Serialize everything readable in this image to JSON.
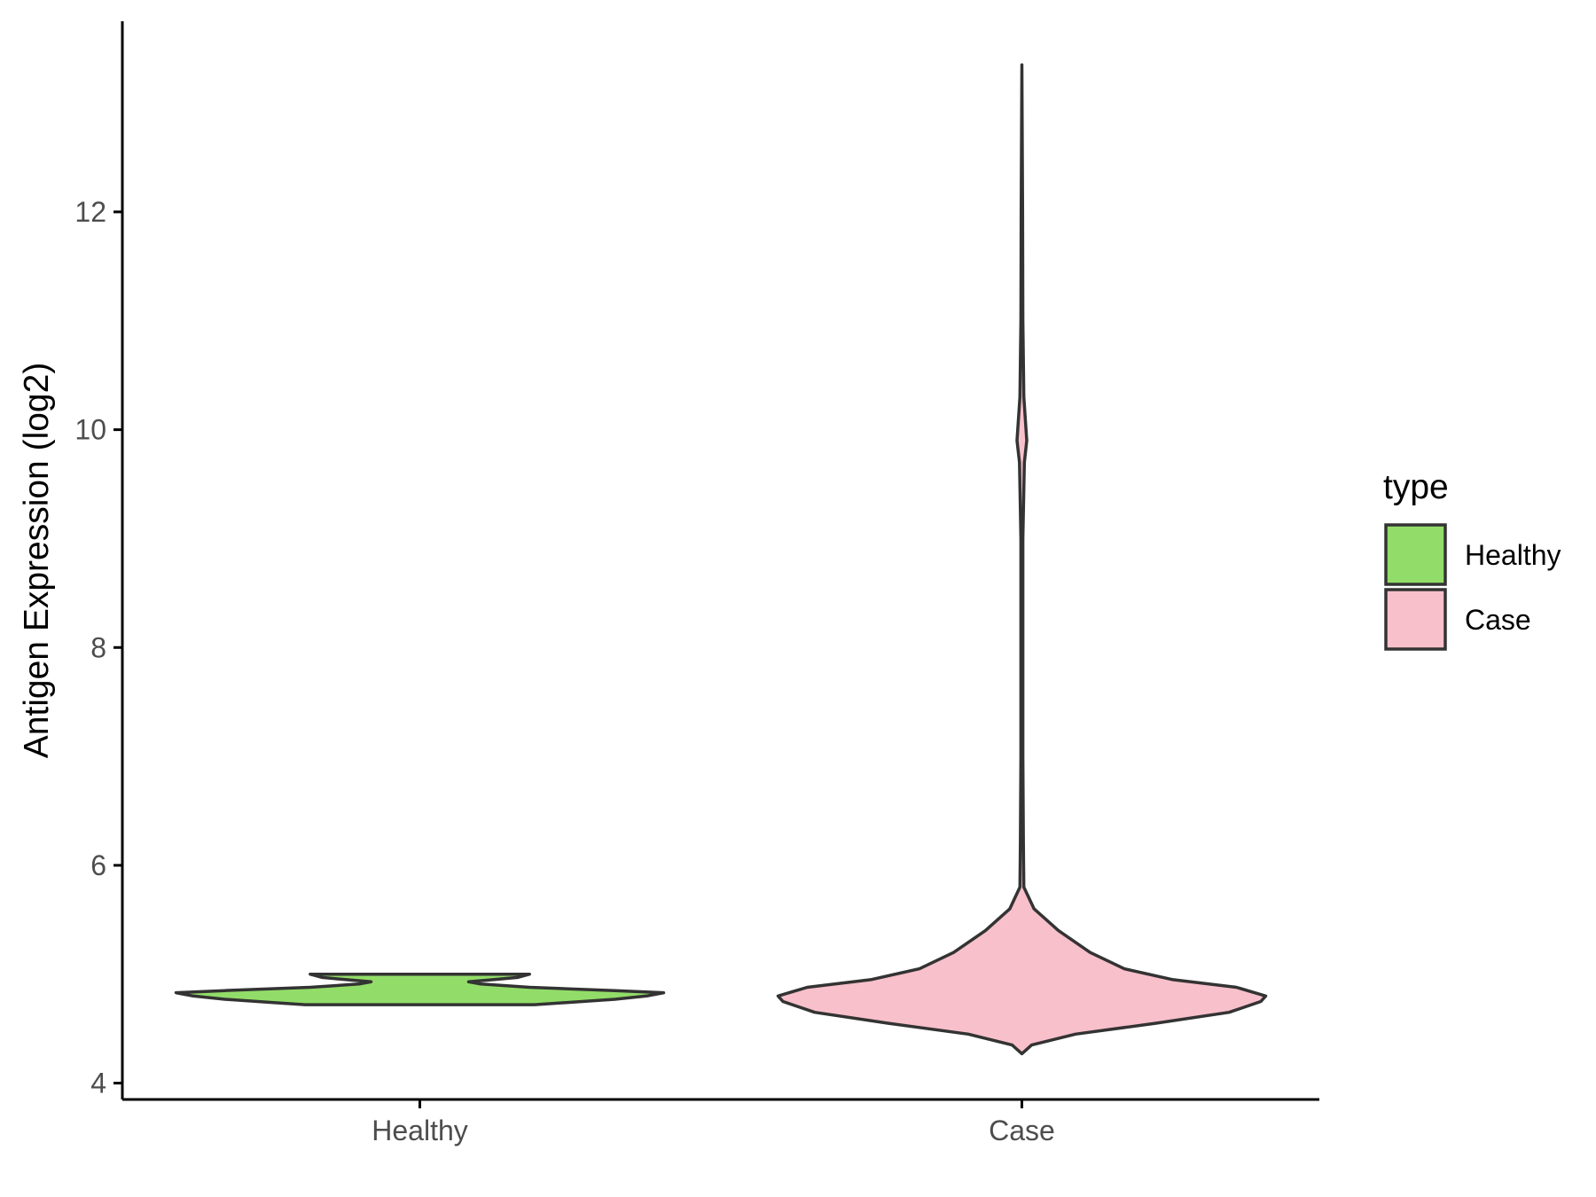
{
  "chart_data": {
    "type": "violin",
    "title": "",
    "xlabel": "",
    "ylabel": "Antigen Expression (log2)",
    "categories": [
      "Healthy",
      "Case"
    ],
    "ylim": [
      3.85,
      13.75
    ],
    "yticks": [
      4,
      6,
      8,
      10,
      12
    ],
    "ytick_labels": [
      "4",
      "6",
      "8",
      "10",
      "12"
    ],
    "grid": false,
    "legend": {
      "title": "type",
      "position": "right",
      "entries": [
        {
          "label": "Healthy",
          "color": "#92dd69"
        },
        {
          "label": "Case",
          "color": "#f8c0cb"
        }
      ]
    },
    "series": [
      {
        "name": "Healthy",
        "color": "#92dd69",
        "y_range": [
          4.72,
          5.0
        ],
        "density_profile": [
          [
            4.72,
            0.47
          ],
          [
            4.74,
            0.6
          ],
          [
            4.77,
            0.8
          ],
          [
            4.8,
            0.93
          ],
          [
            4.83,
            1.0
          ],
          [
            4.85,
            0.8
          ],
          [
            4.88,
            0.45
          ],
          [
            4.91,
            0.25
          ],
          [
            4.93,
            0.2
          ],
          [
            4.95,
            0.3
          ],
          [
            4.97,
            0.4
          ],
          [
            5.0,
            0.45
          ]
        ]
      },
      {
        "name": "Case",
        "color": "#f8c0cb",
        "y_range": [
          4.27,
          13.35
        ],
        "density_profile": [
          [
            4.27,
            0.0
          ],
          [
            4.35,
            0.04
          ],
          [
            4.45,
            0.22
          ],
          [
            4.55,
            0.55
          ],
          [
            4.65,
            0.85
          ],
          [
            4.75,
            0.98
          ],
          [
            4.8,
            1.0
          ],
          [
            4.88,
            0.88
          ],
          [
            4.95,
            0.62
          ],
          [
            5.05,
            0.42
          ],
          [
            5.2,
            0.28
          ],
          [
            5.4,
            0.15
          ],
          [
            5.6,
            0.05
          ],
          [
            5.8,
            0.008
          ],
          [
            6.2,
            0.006
          ],
          [
            7.0,
            0.004
          ],
          [
            8.0,
            0.004
          ],
          [
            9.0,
            0.004
          ],
          [
            9.7,
            0.01
          ],
          [
            9.9,
            0.02
          ],
          [
            10.3,
            0.008
          ],
          [
            11.0,
            0.004
          ],
          [
            12.0,
            0.003
          ],
          [
            13.35,
            0.0
          ]
        ]
      }
    ]
  }
}
